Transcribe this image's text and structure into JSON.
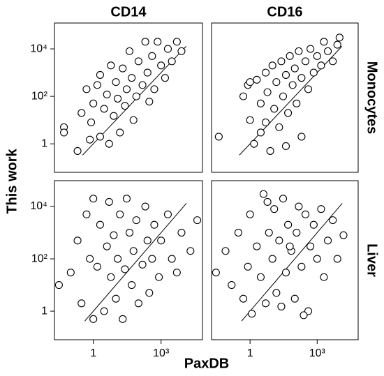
{
  "column_labels": [
    "CD14",
    "CD16"
  ],
  "row_labels": [
    "Monocytes",
    "Liver"
  ],
  "xlabel": "PaxDB",
  "ylabel": "This work",
  "chart_data": [
    {
      "type": "scatter",
      "xscale": "log",
      "yscale": "log",
      "diagonal": true,
      "color": "#ffffff",
      "edgecolor": "#000000",
      "xlim": [
        0.019,
        68000
      ],
      "ylim": [
        0.063,
        123000
      ],
      "yticks": [
        1,
        {
          "value": 100,
          "label": "10²"
        },
        {
          "value": 10000,
          "label": "10⁴"
        }
      ],
      "x": [
        0.05,
        0.05,
        0.3,
        0.5,
        0.8,
        1,
        1.5,
        2,
        2,
        3,
        4,
        5,
        6,
        8,
        10,
        12,
        15,
        20,
        25,
        30,
        40,
        50,
        60,
        80,
        100,
        150,
        200,
        250,
        300,
        400,
        500,
        700,
        1000,
        1500,
        2000,
        3000,
        5000,
        8000,
        0.2,
        0.7
      ],
      "y": [
        5,
        3,
        20,
        200,
        8,
        50,
        300,
        2,
        800,
        30,
        120,
        1,
        2000,
        15,
        400,
        80,
        3,
        1500,
        40,
        200,
        8000,
        600,
        10,
        100,
        3000,
        300,
        20000,
        1000,
        60,
        5000,
        200,
        20000,
        2000,
        600,
        10000,
        3000,
        20000,
        8000,
        0.5,
        1.5
      ]
    },
    {
      "type": "scatter",
      "xscale": "log",
      "yscale": "log",
      "diagonal": true,
      "color": "#ffffff",
      "edgecolor": "#000000",
      "xlim": [
        0.019,
        68000
      ],
      "ylim": [
        0.063,
        123000
      ],
      "x": [
        0.04,
        0.5,
        0.8,
        1,
        1.5,
        2,
        3,
        3,
        5,
        6,
        8,
        10,
        12,
        15,
        20,
        25,
        30,
        40,
        50,
        60,
        80,
        100,
        120,
        150,
        200,
        300,
        400,
        500,
        700,
        1000,
        1500,
        2000,
        3000,
        5000,
        10000,
        200,
        40,
        5,
        1,
        8000
      ],
      "y": [
        2,
        100,
        300,
        10,
        1,
        500,
        50,
        3,
        1000,
        150,
        0.5,
        2000,
        30,
        400,
        5,
        3000,
        100,
        800,
        20,
        5000,
        300,
        1500,
        50,
        8000,
        600,
        3000,
        200,
        10000,
        1000,
        5000,
        2000,
        20000,
        8000,
        3000,
        30000,
        2,
        0.8,
        8,
        400,
        15000
      ]
    },
    {
      "type": "scatter",
      "xscale": "log",
      "yscale": "log",
      "diagonal": true,
      "color": "#ffffff",
      "edgecolor": "#000000",
      "xlim": [
        0.019,
        68000
      ],
      "ylim": [
        0.081,
        97000
      ],
      "xticks": [
        1,
        {
          "value": 1000,
          "label": "10³"
        }
      ],
      "yticks": [
        1,
        {
          "value": 100,
          "label": "10²"
        },
        {
          "value": 10000,
          "label": "10⁴"
        }
      ],
      "x": [
        0.03,
        0.1,
        0.2,
        0.3,
        0.5,
        0.7,
        1,
        1,
        1.5,
        2,
        3,
        4,
        5,
        6,
        8,
        10,
        12,
        15,
        20,
        25,
        30,
        40,
        50,
        60,
        80,
        100,
        150,
        200,
        250,
        300,
        400,
        500,
        800,
        1000,
        2000,
        3000,
        5000,
        8000,
        20000,
        40000
      ],
      "y": [
        10,
        30,
        500,
        2,
        5000,
        100,
        20000,
        0.5,
        50,
        2000,
        1,
        300,
        15000,
        20,
        800,
        3,
        100,
        5000,
        0.5,
        40,
        20000,
        1000,
        10,
        200,
        3000,
        2,
        60,
        10000,
        500,
        5,
        100,
        2000,
        20,
        500,
        5000,
        100,
        30,
        1000,
        200,
        3000
      ]
    },
    {
      "type": "scatter",
      "xscale": "log",
      "yscale": "log",
      "diagonal": true,
      "color": "#ffffff",
      "edgecolor": "#000000",
      "xlim": [
        0.019,
        68000
      ],
      "ylim": [
        0.081,
        97000
      ],
      "xticks": [
        1,
        {
          "value": 1000,
          "label": "10³"
        }
      ],
      "x": [
        0.03,
        0.08,
        0.15,
        0.3,
        0.5,
        0.8,
        1,
        1.2,
        2,
        3,
        4,
        5,
        7,
        10,
        12,
        15,
        20,
        30,
        40,
        50,
        70,
        100,
        120,
        150,
        200,
        300,
        400,
        500,
        700,
        1000,
        1500,
        2000,
        3000,
        5000,
        8000,
        15000,
        6,
        25,
        60,
        250
      ],
      "y": [
        30,
        200,
        10,
        1000,
        3,
        50,
        5000,
        0.8,
        300,
        20,
        30000,
        2,
        1000,
        100,
        8000,
        5,
        500,
        20000,
        30,
        2000,
        200,
        3,
        1000,
        10000,
        50,
        5000,
        1,
        300,
        2000,
        100,
        8000,
        20,
        500,
        3000,
        100,
        800,
        15000,
        1.5,
        300,
        0.7
      ]
    }
  ]
}
